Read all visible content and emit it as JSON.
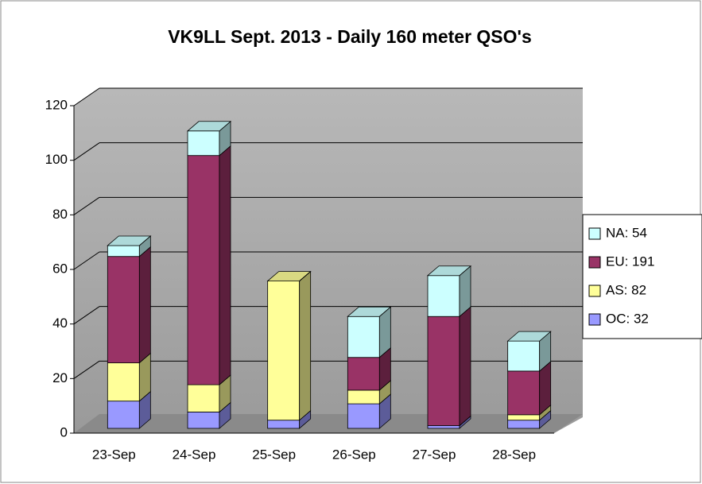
{
  "chart_data": {
    "type": "bar",
    "stacked": true,
    "title": "VK9LL Sept. 2013 - Daily 160 meter QSO's",
    "categories": [
      "23-Sep",
      "24-Sep",
      "25-Sep",
      "26-Sep",
      "27-Sep",
      "28-Sep"
    ],
    "series": [
      {
        "name": "OC: 32",
        "color": "#9999ff",
        "values": [
          10,
          6,
          3,
          9,
          1,
          3
        ]
      },
      {
        "name": "AS: 82",
        "color": "#ffff99",
        "values": [
          14,
          10,
          51,
          5,
          0,
          2
        ]
      },
      {
        "name": "EU: 191",
        "color": "#993366",
        "values": [
          39,
          84,
          0,
          12,
          40,
          16
        ]
      },
      {
        "name": "NA: 54",
        "color": "#ccffff",
        "values": [
          4,
          9,
          0,
          15,
          15,
          11
        ]
      }
    ],
    "ylim": [
      0,
      120
    ],
    "yticks": [
      0,
      20,
      40,
      60,
      80,
      100,
      120
    ],
    "grid": true
  }
}
